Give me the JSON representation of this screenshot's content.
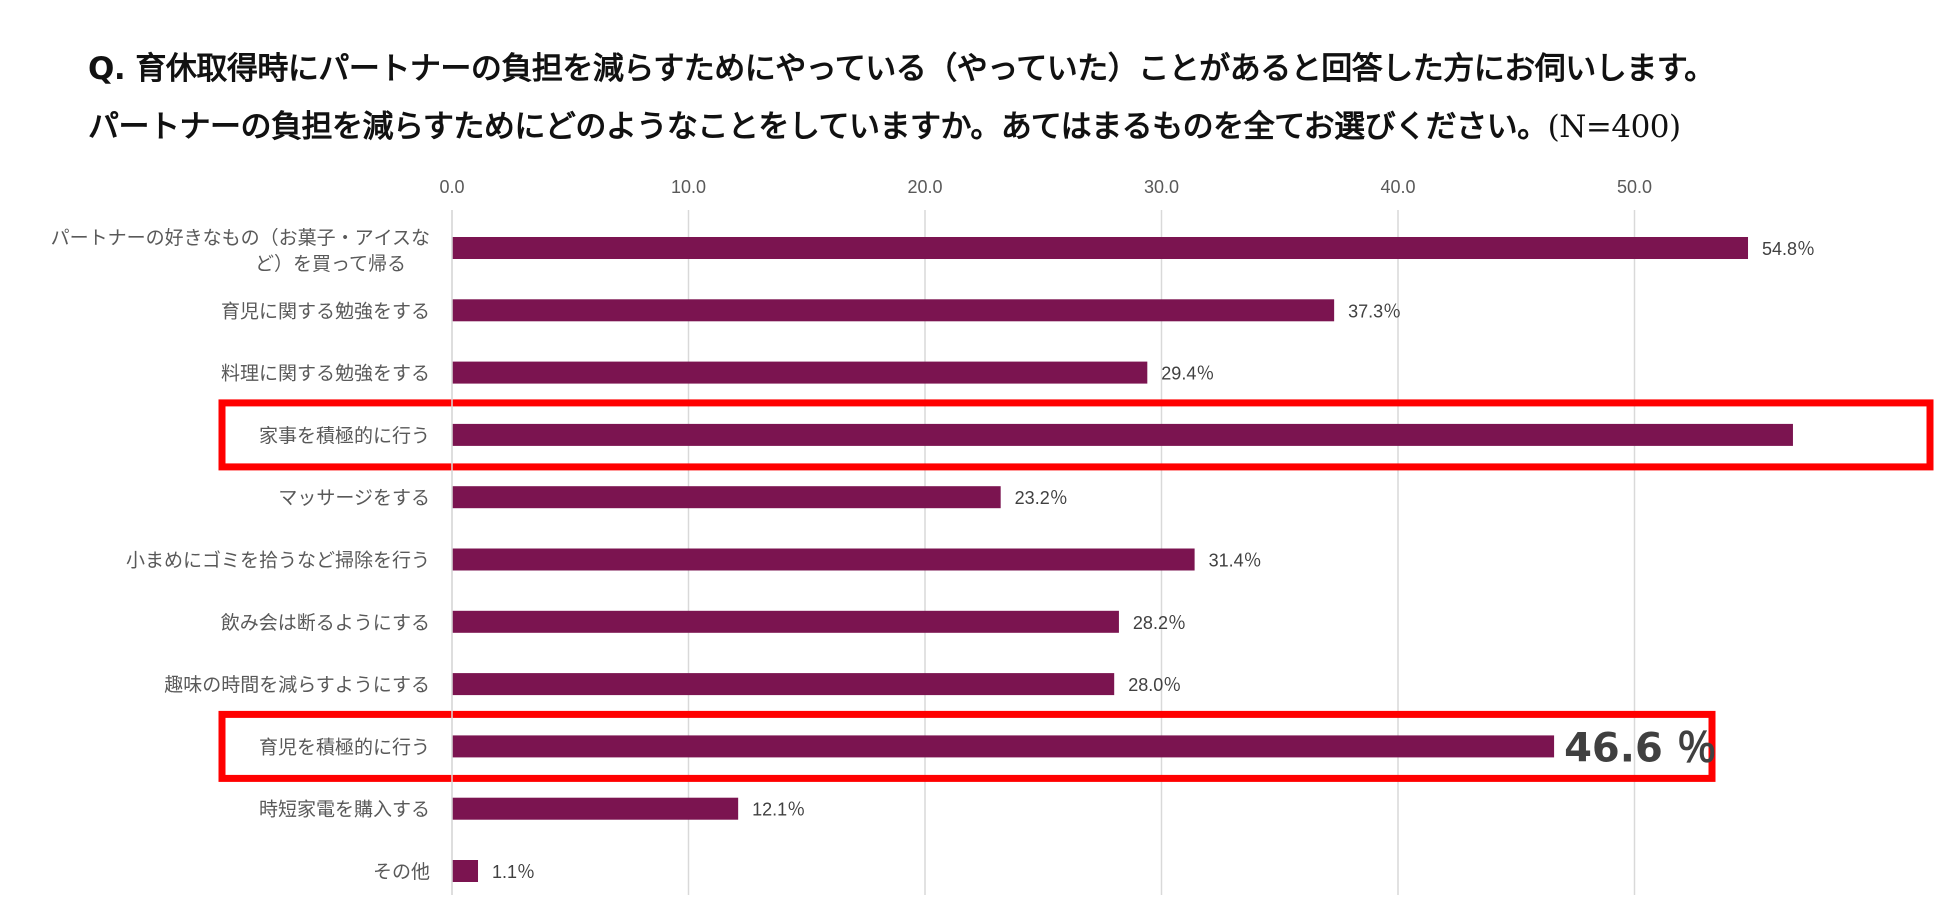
{
  "title": {
    "line1": "Q. 育休取得時にパートナーの負担を減らすためにやっている（やっていた）ことがあると回答した方にお伺いします。",
    "line2": "パートナーの負担を減らすためにどのようなことをしていますか。あてはまるものを全てお選びください。",
    "sample": "(N=400)"
  },
  "colors": {
    "bar": "#7B1450",
    "highlight": "#FF0000",
    "grid": "#D9D9D9"
  },
  "chart_data": {
    "type": "bar",
    "orientation": "horizontal",
    "categories": [
      "パートナーの好きなもの（お菓子・アイスなど）を買って帰る",
      "育児に関する勉強をする",
      "料理に関する勉強をする",
      "家事を積極的に行う",
      "マッサージをする",
      "小まめにゴミを拾うなど掃除を行う",
      "飲み会は断るようにする",
      "趣味の時間を減らすようにする",
      "育児を積極的に行う",
      "時短家電を購入する",
      "その他"
    ],
    "category_label_lines": [
      [
        "パートナーの好きなもの（お菓子・アイスな",
        "ど）を買って帰る"
      ],
      [
        "育児に関する勉強をする"
      ],
      [
        "料理に関する勉強をする"
      ],
      [
        "家事を積極的に行う"
      ],
      [
        "マッサージをする"
      ],
      [
        "小まめにゴミを拾うなど掃除を行う"
      ],
      [
        "飲み会は断るようにする"
      ],
      [
        "趣味の時間を減らすようにする"
      ],
      [
        "育児を積極的に行う"
      ],
      [
        "時短家電を購入する"
      ],
      [
        "その他"
      ]
    ],
    "values": [
      54.8,
      37.3,
      29.4,
      56.7,
      23.2,
      31.4,
      28.2,
      28.0,
      46.6,
      12.1,
      1.1
    ],
    "value_labels": [
      "54.8％",
      "37.3％",
      "29.4％",
      "",
      "23.2％",
      "31.4％",
      "28.2％",
      "28.0％",
      "46.6 ％",
      "12.1％",
      "1.1％"
    ],
    "highlighted": [
      3,
      8
    ],
    "xlim": [
      0,
      55
    ],
    "ticks": [
      "0.0",
      "10.0",
      "20.0",
      "30.0",
      "40.0",
      "50.0"
    ],
    "tick_values": [
      0,
      10,
      20,
      30,
      40,
      50
    ],
    "grid": true,
    "axis_position": "top"
  }
}
